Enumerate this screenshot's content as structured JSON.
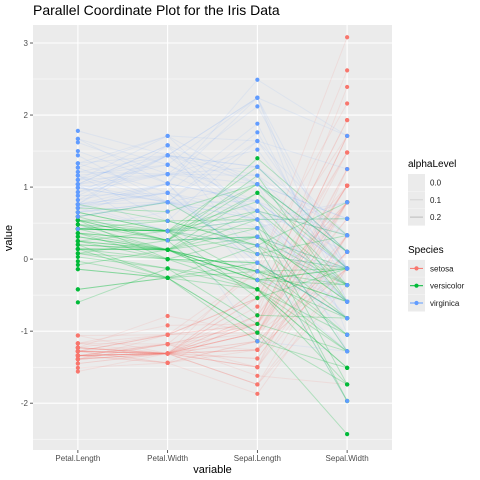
{
  "chart_data": {
    "type": "line",
    "subtype": "parallel-coordinates",
    "title": "Parallel Coordinate Plot for the Iris Data",
    "xlabel": "variable",
    "ylabel": "value",
    "categories": [
      "Petal.Length",
      "Petal.Width",
      "Sepal.Length",
      "Sepal.Width"
    ],
    "ylim": [
      -2.65,
      3.25
    ],
    "yticks": [
      -2,
      -1,
      0,
      1,
      2,
      3
    ],
    "grid": true,
    "panel_background": "#ebebeb",
    "grid_color": "#ffffff",
    "legend_position": "right",
    "legends": [
      {
        "title": "alphaLevel",
        "kind": "line-alpha",
        "entries": [
          {
            "label": "0.0",
            "alpha": 0.0
          },
          {
            "label": "0.1",
            "alpha": 0.1
          },
          {
            "label": "0.2",
            "alpha": 0.2
          }
        ]
      },
      {
        "title": "Species",
        "kind": "color",
        "entries": [
          {
            "label": "setosa",
            "color": "#F8766D"
          },
          {
            "label": "versicolor",
            "color": "#00BA38"
          },
          {
            "label": "virginica",
            "color": "#619CFF"
          }
        ]
      }
    ],
    "series": [
      {
        "name": "setosa",
        "color": "#F8766D",
        "line_alpha": 0.12,
        "lines": [
          [
            -1.34,
            -1.31,
            -0.9,
            1.02
          ],
          [
            -1.34,
            -1.31,
            -1.14,
            -0.13
          ],
          [
            -1.39,
            -1.31,
            -1.38,
            0.33
          ],
          [
            -1.28,
            -1.31,
            -1.5,
            0.1
          ],
          [
            -1.34,
            -1.31,
            -1.02,
            1.25
          ],
          [
            -1.17,
            -1.05,
            -0.54,
            1.93
          ],
          [
            -1.34,
            -1.18,
            -1.5,
            0.79
          ],
          [
            -1.28,
            -1.31,
            -1.02,
            0.79
          ],
          [
            -1.34,
            -1.31,
            -1.74,
            -0.36
          ],
          [
            -1.28,
            -1.44,
            -1.14,
            0.1
          ],
          [
            -1.28,
            -1.31,
            -0.54,
            1.48
          ],
          [
            -1.23,
            -1.31,
            -1.26,
            0.79
          ],
          [
            -1.34,
            -1.44,
            -1.26,
            -0.13
          ],
          [
            -1.51,
            -1.44,
            -1.87,
            -0.13
          ],
          [
            -1.45,
            -1.31,
            -0.05,
            2.16
          ],
          [
            -1.28,
            -1.05,
            -0.17,
            3.08
          ],
          [
            -1.39,
            -1.05,
            -0.54,
            1.93
          ],
          [
            -1.34,
            -1.18,
            -0.9,
            1.02
          ],
          [
            -1.17,
            -1.18,
            -0.17,
            1.71
          ],
          [
            -1.28,
            -1.18,
            -0.9,
            1.71
          ],
          [
            -1.17,
            -1.31,
            -0.54,
            0.79
          ],
          [
            -1.28,
            -1.05,
            -0.9,
            1.48
          ],
          [
            -1.56,
            -1.31,
            -1.5,
            1.25
          ],
          [
            -1.17,
            -0.92,
            -0.9,
            0.56
          ],
          [
            -1.06,
            -1.31,
            -1.26,
            0.79
          ],
          [
            -1.23,
            -1.31,
            -1.02,
            -0.13
          ],
          [
            -1.23,
            -1.05,
            -1.02,
            0.79
          ],
          [
            -1.28,
            -1.31,
            -0.78,
            1.02
          ],
          [
            -1.34,
            -1.31,
            -0.78,
            0.79
          ],
          [
            -1.23,
            -1.31,
            -1.38,
            0.33
          ],
          [
            -1.23,
            -1.31,
            -1.26,
            0.1
          ],
          [
            -1.28,
            -1.05,
            -0.54,
            0.79
          ],
          [
            -1.28,
            -1.44,
            -0.78,
            2.39
          ],
          [
            -1.34,
            -1.31,
            -0.42,
            2.62
          ],
          [
            -1.28,
            -1.31,
            -1.14,
            0.1
          ],
          [
            -1.45,
            -1.31,
            -1.02,
            0.33
          ],
          [
            -1.39,
            -1.31,
            -0.42,
            1.02
          ],
          [
            -1.34,
            -1.44,
            -1.14,
            1.25
          ],
          [
            -1.39,
            -1.31,
            -1.74,
            -0.13
          ],
          [
            -1.28,
            -1.31,
            -0.9,
            0.79
          ],
          [
            -1.39,
            -1.18,
            -1.02,
            1.02
          ],
          [
            -1.39,
            -1.18,
            -1.62,
            -1.74
          ],
          [
            -1.39,
            -1.31,
            -1.74,
            0.33
          ],
          [
            -1.23,
            -0.79,
            -1.02,
            1.02
          ],
          [
            -1.06,
            -1.05,
            -0.9,
            1.71
          ],
          [
            -1.34,
            -1.18,
            -1.26,
            -0.13
          ],
          [
            -1.23,
            -1.31,
            -0.9,
            1.71
          ],
          [
            -1.34,
            -1.31,
            -1.5,
            0.33
          ],
          [
            -1.28,
            -1.31,
            -0.66,
            1.48
          ],
          [
            -1.34,
            -1.31,
            -1.02,
            0.56
          ]
        ]
      },
      {
        "name": "versicolor",
        "color": "#00BA38",
        "line_alpha": 0.25,
        "lines": [
          [
            0.54,
            0.26,
            1.4,
            0.33
          ],
          [
            0.42,
            0.39,
            0.67,
            0.33
          ],
          [
            0.65,
            0.39,
            1.28,
            0.1
          ],
          [
            0.14,
            0.13,
            -0.42,
            -1.74
          ],
          [
            0.48,
            0.39,
            0.8,
            -0.59
          ],
          [
            0.42,
            0.13,
            -0.17,
            -0.59
          ],
          [
            0.54,
            0.53,
            0.55,
            0.56
          ],
          [
            -0.42,
            -0.26,
            -1.14,
            -1.51
          ],
          [
            0.48,
            0.13,
            0.92,
            -0.36
          ],
          [
            0.08,
            0.26,
            -0.78,
            -0.82
          ],
          [
            -0.14,
            -0.26,
            -1.02,
            -2.43
          ],
          [
            0.25,
            0.39,
            0.07,
            -0.13
          ],
          [
            0.14,
            -0.26,
            0.19,
            -1.97
          ],
          [
            0.54,
            0.26,
            0.31,
            -0.36
          ],
          [
            -0.08,
            0.13,
            -0.29,
            -0.36
          ],
          [
            0.36,
            0.26,
            1.04,
            0.1
          ],
          [
            0.42,
            0.39,
            -0.29,
            -0.13
          ],
          [
            0.2,
            -0.26,
            -0.05,
            -0.82
          ],
          [
            0.42,
            0.39,
            0.43,
            -1.97
          ],
          [
            0.08,
            -0.13,
            -0.29,
            -1.28
          ],
          [
            0.59,
            0.79,
            0.07,
            0.33
          ],
          [
            0.14,
            0.13,
            0.31,
            -0.59
          ],
          [
            0.65,
            0.39,
            0.55,
            -1.28
          ],
          [
            0.54,
            0.0,
            0.31,
            -0.59
          ],
          [
            0.31,
            0.13,
            0.67,
            -0.36
          ],
          [
            0.36,
            0.26,
            0.92,
            -0.13
          ],
          [
            0.59,
            0.26,
            1.16,
            -0.59
          ],
          [
            0.71,
            0.66,
            1.04,
            -0.13
          ],
          [
            0.42,
            0.39,
            0.19,
            -0.36
          ],
          [
            -0.14,
            -0.26,
            -0.17,
            -1.05
          ],
          [
            0.03,
            -0.13,
            -0.42,
            -1.51
          ],
          [
            -0.03,
            -0.26,
            -0.42,
            -1.51
          ],
          [
            0.08,
            0.0,
            -0.05,
            -0.82
          ],
          [
            0.76,
            0.53,
            0.19,
            -0.82
          ],
          [
            0.42,
            0.39,
            -0.54,
            -0.13
          ],
          [
            0.42,
            0.53,
            0.19,
            0.79
          ],
          [
            0.54,
            0.39,
            1.04,
            0.1
          ],
          [
            0.36,
            0.13,
            0.55,
            -1.74
          ],
          [
            0.2,
            0.13,
            -0.29,
            -0.13
          ],
          [
            0.14,
            0.13,
            -0.42,
            -1.28
          ],
          [
            0.36,
            0.0,
            -0.42,
            -1.05
          ],
          [
            0.48,
            0.26,
            0.31,
            -0.13
          ],
          [
            0.14,
            0.0,
            -0.05,
            -1.05
          ],
          [
            -0.42,
            -0.26,
            -1.02,
            -1.74
          ],
          [
            0.25,
            0.13,
            -0.29,
            -0.82
          ],
          [
            0.25,
            0.0,
            -0.17,
            -0.13
          ],
          [
            0.25,
            0.13,
            -0.17,
            -0.36
          ],
          [
            0.31,
            0.13,
            0.43,
            -0.36
          ],
          [
            -0.6,
            -0.13,
            -0.9,
            -1.28
          ],
          [
            0.2,
            0.13,
            -0.17,
            -0.59
          ]
        ]
      },
      {
        "name": "virginica",
        "color": "#619CFF",
        "line_alpha": 0.1,
        "lines": [
          [
            1.27,
            1.71,
            0.55,
            0.56
          ],
          [
            0.76,
            0.92,
            -0.05,
            -0.82
          ],
          [
            1.21,
            1.18,
            1.52,
            -0.13
          ],
          [
            1.04,
            0.79,
            0.55,
            -0.36
          ],
          [
            1.16,
            1.31,
            0.8,
            -0.13
          ],
          [
            1.62,
            1.18,
            2.12,
            -0.13
          ],
          [
            0.42,
            0.66,
            -1.14,
            -1.28
          ],
          [
            1.44,
            0.79,
            1.76,
            -0.36
          ],
          [
            1.16,
            0.79,
            1.04,
            -1.28
          ],
          [
            1.33,
            1.71,
            1.64,
            1.25
          ],
          [
            0.76,
            1.05,
            0.8,
            0.33
          ],
          [
            0.88,
            0.92,
            0.67,
            -0.82
          ],
          [
            0.99,
            1.18,
            1.16,
            -0.13
          ],
          [
            0.71,
            1.05,
            -0.17,
            -1.28
          ],
          [
            0.76,
            1.58,
            -0.05,
            -0.59
          ],
          [
            0.88,
            1.44,
            0.67,
            0.33
          ],
          [
            0.99,
            0.79,
            0.8,
            -0.13
          ],
          [
            1.67,
            1.31,
            2.24,
            1.71
          ],
          [
            1.78,
            1.44,
            2.24,
            -1.05
          ],
          [
            0.71,
            0.39,
            0.19,
            -1.97
          ],
          [
            1.1,
            1.44,
            1.28,
            0.33
          ],
          [
            0.65,
            1.05,
            -0.29,
            -0.59
          ],
          [
            1.67,
            1.05,
            2.24,
            -0.59
          ],
          [
            0.65,
            0.79,
            0.55,
            -0.82
          ],
          [
            1.1,
            1.18,
            1.04,
            0.56
          ],
          [
            1.27,
            0.79,
            1.64,
            0.33
          ],
          [
            0.59,
            0.79,
            0.43,
            -0.59
          ],
          [
            0.65,
            0.79,
            0.31,
            -0.13
          ],
          [
            1.04,
            1.18,
            0.67,
            -0.59
          ],
          [
            1.16,
            0.53,
            1.64,
            -0.13
          ],
          [
            1.33,
            0.92,
            1.88,
            -0.59
          ],
          [
            1.5,
            1.05,
            2.49,
            1.71
          ],
          [
            1.04,
            1.31,
            0.67,
            -0.59
          ],
          [
            0.76,
            0.39,
            0.55,
            -0.59
          ],
          [
            1.04,
            0.26,
            0.31,
            -1.05
          ],
          [
            1.33,
            1.44,
            2.24,
            -0.13
          ],
          [
            1.04,
            1.58,
            0.55,
            0.79
          ],
          [
            0.99,
            0.79,
            0.67,
            0.1
          ],
          [
            0.59,
            0.79,
            0.19,
            -0.13
          ],
          [
            0.93,
            1.18,
            1.28,
            0.1
          ],
          [
            1.04,
            1.58,
            1.04,
            0.1
          ],
          [
            0.76,
            1.44,
            1.28,
            0.1
          ],
          [
            0.76,
            0.92,
            -0.05,
            -0.82
          ],
          [
            1.21,
            1.44,
            1.16,
            0.33
          ],
          [
            1.1,
            1.71,
            1.04,
            0.56
          ],
          [
            0.82,
            1.44,
            1.04,
            -0.13
          ],
          [
            0.71,
            0.92,
            0.55,
            -1.28
          ],
          [
            0.82,
            1.05,
            0.8,
            -0.13
          ],
          [
            0.93,
            1.44,
            0.43,
            0.79
          ],
          [
            0.76,
            0.79,
            0.07,
            -0.13
          ]
        ]
      }
    ]
  }
}
